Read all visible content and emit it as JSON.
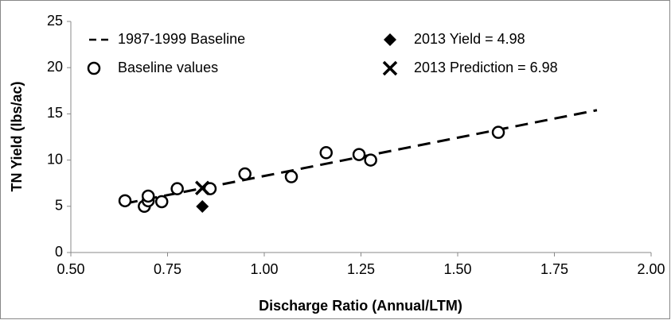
{
  "chart_data": {
    "type": "scatter",
    "xlabel": "Discharge Ratio (Annual/LTM)",
    "ylabel": "TN Yield (lbs/ac)",
    "xlim": [
      0.5,
      2.0
    ],
    "xticks": [
      {
        "value": 0.5,
        "label": "0.50"
      },
      {
        "value": 0.75,
        "label": "0.75"
      },
      {
        "value": 1.0,
        "label": "1.00"
      },
      {
        "value": 1.25,
        "label": "1.25"
      },
      {
        "value": 1.5,
        "label": "1.50"
      },
      {
        "value": 1.75,
        "label": "1.75"
      },
      {
        "value": 2.0,
        "label": "2.00"
      }
    ],
    "ylim": [
      0,
      25
    ],
    "yticks": [
      0,
      5,
      10,
      15,
      20,
      25
    ],
    "series": [
      {
        "name": "1987-1999 Baseline",
        "marker": "dashed-line",
        "color": "#000000",
        "x": [
          0.64,
          1.86
        ],
        "values": [
          5.3,
          15.4
        ]
      },
      {
        "name": "Baseline values",
        "marker": "circle",
        "color": "#000000",
        "x": [
          0.64,
          0.69,
          0.7,
          0.7,
          0.735,
          0.775,
          0.86,
          0.95,
          1.07,
          1.16,
          1.245,
          1.275,
          1.605
        ],
        "values": [
          5.6,
          5.0,
          5.6,
          6.1,
          5.5,
          6.9,
          6.9,
          8.5,
          8.2,
          10.8,
          10.6,
          10.0,
          13.0
        ]
      },
      {
        "name": "2013 Yield = 4.98",
        "marker": "diamond",
        "color": "#000000",
        "x": [
          0.84
        ],
        "values": [
          4.98
        ]
      },
      {
        "name": "2013 Prediction = 6.98",
        "marker": "x",
        "color": "#000000",
        "x": [
          0.84
        ],
        "values": [
          6.98
        ]
      }
    ]
  }
}
